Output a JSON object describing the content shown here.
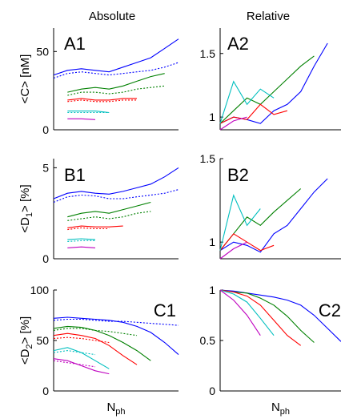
{
  "column_titles": [
    "Absolute",
    "Relative"
  ],
  "chart_data": [
    {
      "type": "line",
      "panel_label": "A1",
      "ylabel": "<C> [nM]",
      "xlabel": "",
      "ylim": [
        0,
        65
      ],
      "yticks": [
        0,
        50
      ],
      "x": [
        1,
        2,
        3,
        4,
        5,
        6,
        7,
        8,
        9,
        10
      ],
      "series": [
        {
          "color": "#0000ff",
          "style": "solid",
          "values": [
            35,
            38,
            39,
            38,
            37,
            40,
            43,
            46,
            52,
            58
          ]
        },
        {
          "color": "#0000ff",
          "style": "dotted",
          "values": [
            33,
            36,
            37,
            36,
            35,
            36,
            37,
            38,
            40,
            43
          ]
        },
        {
          "color": "#008000",
          "style": "solid",
          "values": [
            null,
            24,
            26,
            27,
            26,
            28,
            31,
            34,
            36,
            null
          ]
        },
        {
          "color": "#008000",
          "style": "dotted",
          "values": [
            null,
            22,
            24,
            24,
            23,
            24,
            26,
            27,
            28,
            null
          ]
        },
        {
          "color": "#ff0000",
          "style": "solid",
          "values": [
            null,
            19,
            20,
            19,
            19,
            20,
            20,
            null,
            null,
            null
          ]
        },
        {
          "color": "#ff0000",
          "style": "dotted",
          "values": [
            null,
            18,
            19,
            18,
            18,
            19,
            19,
            null,
            null,
            null
          ]
        },
        {
          "color": "#00bfbf",
          "style": "solid",
          "values": [
            null,
            12,
            12,
            12,
            11,
            null,
            null,
            null,
            null,
            null
          ]
        },
        {
          "color": "#00bfbf",
          "style": "dotted",
          "values": [
            null,
            11,
            11,
            11,
            11,
            null,
            null,
            null,
            null,
            null
          ]
        },
        {
          "color": "#bf00bf",
          "style": "solid",
          "values": [
            null,
            7,
            7,
            6.5,
            null,
            null,
            null,
            null,
            null,
            null
          ]
        }
      ]
    },
    {
      "type": "line",
      "panel_label": "A2",
      "ylabel": "",
      "xlabel": "",
      "ylim": [
        0.9,
        1.7
      ],
      "yticks": [
        1,
        1.5
      ],
      "x": [
        1,
        2,
        3,
        4,
        5,
        6,
        7,
        8,
        9,
        10
      ],
      "series": [
        {
          "color": "#0000ff",
          "style": "solid",
          "values": [
            0.95,
            1.0,
            0.98,
            0.95,
            1.05,
            1.1,
            1.2,
            1.4,
            1.58,
            null
          ]
        },
        {
          "color": "#008000",
          "style": "solid",
          "values": [
            0.95,
            1.05,
            1.15,
            1.1,
            1.2,
            1.3,
            1.4,
            1.48,
            null,
            null
          ]
        },
        {
          "color": "#ff0000",
          "style": "solid",
          "values": [
            0.95,
            1.0,
            0.98,
            1.1,
            1.02,
            1.05,
            null,
            null,
            null,
            null
          ]
        },
        {
          "color": "#00bfbf",
          "style": "solid",
          "values": [
            0.95,
            1.28,
            1.1,
            1.22,
            1.15,
            null,
            null,
            null,
            null,
            null
          ]
        },
        {
          "color": "#bf00bf",
          "style": "solid",
          "values": [
            0.9,
            0.97,
            1.0,
            null,
            null,
            null,
            null,
            null,
            null,
            null
          ]
        }
      ]
    },
    {
      "type": "line",
      "panel_label": "B1",
      "ylabel": "<D1> [%]",
      "xlabel": "",
      "ylim": [
        0,
        5.5
      ],
      "yticks": [
        0,
        5
      ],
      "x": [
        1,
        2,
        3,
        4,
        5,
        6,
        7,
        8,
        9,
        10
      ],
      "series": [
        {
          "color": "#0000ff",
          "style": "solid",
          "values": [
            3.3,
            3.6,
            3.7,
            3.6,
            3.55,
            3.7,
            3.9,
            4.1,
            4.5,
            5.0
          ]
        },
        {
          "color": "#0000ff",
          "style": "dotted",
          "values": [
            3.1,
            3.4,
            3.5,
            3.45,
            3.3,
            3.3,
            3.4,
            3.5,
            3.6,
            3.8
          ]
        },
        {
          "color": "#008000",
          "style": "solid",
          "values": [
            null,
            2.3,
            2.5,
            2.6,
            2.5,
            2.7,
            2.9,
            3.1,
            null,
            null
          ]
        },
        {
          "color": "#008000",
          "style": "dotted",
          "values": [
            null,
            2.1,
            2.2,
            2.3,
            2.2,
            2.3,
            2.5,
            2.6,
            null,
            null
          ]
        },
        {
          "color": "#ff0000",
          "style": "solid",
          "values": [
            null,
            1.7,
            1.8,
            1.75,
            1.75,
            1.8,
            null,
            null,
            null,
            null
          ]
        },
        {
          "color": "#ff0000",
          "style": "dotted",
          "values": [
            null,
            1.6,
            1.7,
            1.65,
            1.65,
            null,
            null,
            null,
            null,
            null
          ]
        },
        {
          "color": "#00bfbf",
          "style": "solid",
          "values": [
            null,
            1.05,
            1.1,
            1.05,
            null,
            null,
            null,
            null,
            null,
            null
          ]
        },
        {
          "color": "#00bfbf",
          "style": "dotted",
          "values": [
            null,
            0.95,
            1.0,
            1.0,
            null,
            null,
            null,
            null,
            null,
            null
          ]
        },
        {
          "color": "#bf00bf",
          "style": "solid",
          "values": [
            null,
            0.6,
            0.65,
            0.6,
            null,
            null,
            null,
            null,
            null,
            null
          ]
        }
      ]
    },
    {
      "type": "line",
      "panel_label": "B2",
      "ylabel": "",
      "xlabel": "",
      "ylim": [
        0.9,
        1.5
      ],
      "yticks": [
        1,
        1.5
      ],
      "x": [
        1,
        2,
        3,
        4,
        5,
        6,
        7,
        8,
        9,
        10
      ],
      "series": [
        {
          "color": "#0000ff",
          "style": "solid",
          "values": [
            0.95,
            1.0,
            0.98,
            0.94,
            1.05,
            1.1,
            1.2,
            1.3,
            1.38,
            null
          ]
        },
        {
          "color": "#008000",
          "style": "solid",
          "values": [
            0.95,
            1.05,
            1.15,
            1.1,
            1.18,
            1.25,
            1.32,
            null,
            null,
            null
          ]
        },
        {
          "color": "#ff0000",
          "style": "solid",
          "values": [
            0.95,
            1.05,
            1.0,
            0.95,
            0.98,
            null,
            null,
            null,
            null,
            null
          ]
        },
        {
          "color": "#00bfbf",
          "style": "solid",
          "values": [
            0.95,
            1.28,
            1.1,
            1.2,
            null,
            null,
            null,
            null,
            null,
            null
          ]
        },
        {
          "color": "#bf00bf",
          "style": "solid",
          "values": [
            0.9,
            0.96,
            1.0,
            null,
            null,
            null,
            null,
            null,
            null,
            null
          ]
        }
      ]
    },
    {
      "type": "line",
      "panel_label": "C1",
      "ylabel": "<D2> [%]",
      "xlabel": "Nph",
      "ylim": [
        0,
        100
      ],
      "yticks": [
        0,
        50,
        100
      ],
      "x": [
        1,
        2,
        3,
        4,
        5,
        6,
        7,
        8,
        9,
        10
      ],
      "series": [
        {
          "color": "#0000ff",
          "style": "solid",
          "values": [
            72,
            73,
            72,
            71,
            70,
            68,
            64,
            58,
            48,
            36
          ]
        },
        {
          "color": "#0000ff",
          "style": "dotted",
          "values": [
            70,
            71,
            71,
            70,
            69,
            69,
            68,
            67,
            66,
            65
          ]
        },
        {
          "color": "#008000",
          "style": "solid",
          "values": [
            62,
            64,
            63,
            60,
            55,
            48,
            40,
            30,
            null,
            null
          ]
        },
        {
          "color": "#008000",
          "style": "dotted",
          "values": [
            60,
            62,
            62,
            60,
            59,
            57,
            55,
            null,
            null,
            null
          ]
        },
        {
          "color": "#ff0000",
          "style": "solid",
          "values": [
            55,
            57,
            55,
            52,
            45,
            35,
            26,
            null,
            null,
            null
          ]
        },
        {
          "color": "#ff0000",
          "style": "dotted",
          "values": [
            52,
            53,
            52,
            50,
            48,
            null,
            null,
            null,
            null,
            null
          ]
        },
        {
          "color": "#00bfbf",
          "style": "solid",
          "values": [
            40,
            43,
            38,
            30,
            22,
            null,
            null,
            null,
            null,
            null
          ]
        },
        {
          "color": "#00bfbf",
          "style": "dotted",
          "values": [
            38,
            40,
            38,
            36,
            null,
            null,
            null,
            null,
            null,
            null
          ]
        },
        {
          "color": "#bf00bf",
          "style": "solid",
          "values": [
            32,
            30,
            25,
            20,
            17,
            null,
            null,
            null,
            null,
            null
          ]
        },
        {
          "color": "#bf00bf",
          "style": "dotted",
          "values": [
            30,
            28,
            26,
            24,
            null,
            null,
            null,
            null,
            null,
            null
          ]
        }
      ]
    },
    {
      "type": "line",
      "panel_label": "C2",
      "ylabel": "",
      "xlabel": "Nph",
      "ylim": [
        0,
        1
      ],
      "yticks": [
        0,
        0.5,
        1
      ],
      "x": [
        1,
        2,
        3,
        4,
        5,
        6,
        7,
        8,
        9,
        10
      ],
      "series": [
        {
          "color": "#0000ff",
          "style": "solid",
          "values": [
            1.0,
            0.99,
            0.97,
            0.95,
            0.93,
            0.9,
            0.85,
            0.75,
            0.62,
            0.49
          ]
        },
        {
          "color": "#008000",
          "style": "solid",
          "values": [
            1.0,
            0.98,
            0.97,
            0.92,
            0.85,
            0.74,
            0.6,
            0.48,
            null,
            null
          ]
        },
        {
          "color": "#ff0000",
          "style": "solid",
          "values": [
            1.0,
            0.98,
            0.94,
            0.85,
            0.7,
            0.55,
            0.45,
            null,
            null,
            null
          ]
        },
        {
          "color": "#00bfbf",
          "style": "solid",
          "values": [
            1.0,
            0.96,
            0.88,
            0.72,
            0.55,
            null,
            null,
            null,
            null,
            null
          ]
        },
        {
          "color": "#bf00bf",
          "style": "solid",
          "values": [
            1.0,
            0.9,
            0.75,
            0.55,
            null,
            null,
            null,
            null,
            null,
            null
          ]
        }
      ]
    }
  ]
}
